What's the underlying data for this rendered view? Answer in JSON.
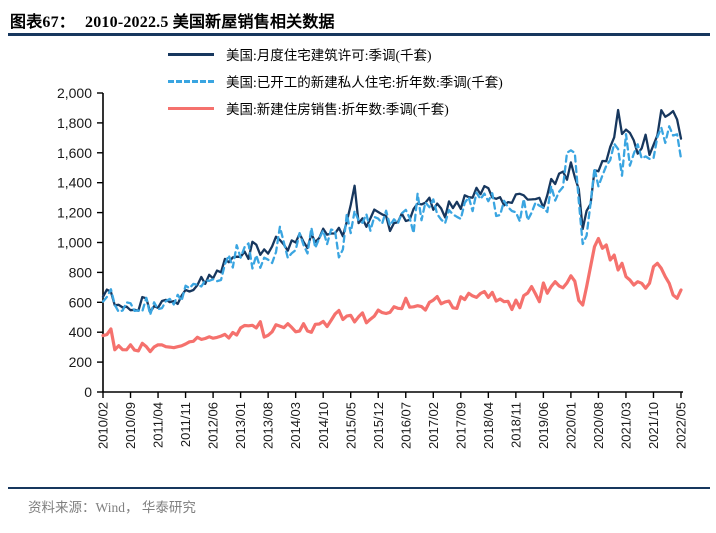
{
  "header": {
    "tag": "图表67：",
    "title": "2010-2022.5 美国新屋销售相关数据"
  },
  "footer": {
    "source": "资料来源：Wind， 华泰研究"
  },
  "colors": {
    "rule": "#17375E",
    "permits": "#17375E",
    "starts": "#3AA5E1",
    "sales": "#F5716D",
    "axis": "#000000",
    "tick_label": "#1a1a1a",
    "footer_text": "#7f7f7f"
  },
  "legend": [
    {
      "label": "美国:月度住宅建筑许可:季调(千套)",
      "style": "solid",
      "series": "permits"
    },
    {
      "label": "美国:已开工的新建私人住宅:折年数:季调(千套)",
      "style": "dashed",
      "series": "starts"
    },
    {
      "label": "美国:新建住房销售:折年数:季调(千套)",
      "style": "solid",
      "series": "sales"
    }
  ],
  "chart_data": {
    "type": "line",
    "title": "2010-2022.5 美国新屋销售相关数据",
    "x_start": "2010/02",
    "x_end": "2022/05",
    "x_unit": "month",
    "ylim": [
      0,
      2000
    ],
    "y_ticks": [
      0,
      200,
      400,
      600,
      800,
      1000,
      1200,
      1400,
      1600,
      1800,
      2000
    ],
    "y_tick_labels": [
      "0",
      "200",
      "400",
      "600",
      "800",
      "1,000",
      "1,200",
      "1,400",
      "1,600",
      "1,800",
      "2,000"
    ],
    "x_tick_every": 7,
    "x_tick_labels": [
      "2010/02",
      "2010/09",
      "2011/04",
      "2011/11",
      "2012/06",
      "2013/01",
      "2013/08",
      "2014/03",
      "2014/10",
      "2015/05",
      "2015/12",
      "2016/07",
      "2017/02",
      "2017/09",
      "2018/04",
      "2018/11",
      "2019/06",
      "2020/01",
      "2020/08",
      "2021/03",
      "2021/10",
      "2022/05"
    ],
    "grid": false,
    "legend_position": "top",
    "series": [
      {
        "name": "美国:月度住宅建筑许可:季调(千套)",
        "key": "permits",
        "dash": null,
        "values": [
          637,
          685,
          670,
          580,
          583,
          565,
          571,
          547,
          550,
          544,
          635,
          627,
          534,
          574,
          563,
          609,
          617,
          601,
          608,
          589,
          644,
          683,
          672,
          682,
          715,
          769,
          723,
          784,
          760,
          812,
          801,
          890,
          868,
          900,
          905,
          904,
          939,
          890,
          1005,
          985,
          918,
          954,
          926,
          974,
          1039,
          1017,
          986,
          945,
          1014,
          1000,
          1059,
          1005,
          963,
          1057,
          1003,
          1031,
          1092,
          1052,
          1060,
          1060,
          1098,
          1042,
          1140,
          1250,
          1380,
          1130,
          1161,
          1105,
          1161,
          1220,
          1204,
          1188,
          1177,
          1077,
          1130,
          1136,
          1193,
          1144,
          1152,
          1225,
          1260,
          1255,
          1266,
          1300,
          1219,
          1260,
          1228,
          1168,
          1275,
          1230,
          1272,
          1225,
          1316,
          1303,
          1300,
          1366,
          1323,
          1377,
          1364,
          1301,
          1292,
          1303,
          1249,
          1270,
          1265,
          1322,
          1326,
          1316,
          1287,
          1288,
          1290,
          1299,
          1232,
          1317,
          1425,
          1391,
          1461,
          1474,
          1420,
          1536,
          1438,
          1356,
          1090,
          1212,
          1258,
          1483,
          1476,
          1545,
          1544,
          1639,
          1704,
          1886,
          1726,
          1755,
          1733,
          1683,
          1594,
          1630,
          1721,
          1586,
          1653,
          1717,
          1885,
          1841,
          1857,
          1879,
          1823,
          1695
        ]
      },
      {
        "name": "美国:已开工的新建私人住宅:折年数:季调(千套)",
        "key": "starts",
        "dash": "6,4.5",
        "values": [
          605,
          636,
          687,
          583,
          536,
          546,
          599,
          594,
          543,
          545,
          539,
          630,
          517,
          600,
          554,
          561,
          608,
          623,
          585,
          650,
          610,
          711,
          694,
          723,
          718,
          706,
          747,
          744,
          754,
          741,
          749,
          854,
          915,
          833,
          982,
          898,
          969,
          994,
          826,
          915,
          831,
          898,
          885,
          863,
          936,
          1105,
          999,
          897,
          928,
          950,
          1063,
          984,
          927,
          1098,
          964,
          1028,
          1080,
          989,
          1087,
          1080,
          900,
          954,
          1190,
          1063,
          1211,
          1147,
          1132,
          1189,
          1079,
          1171,
          1160,
          1128,
          1213,
          1113,
          1155,
          1128,
          1195,
          1218,
          1164,
          1062,
          1328,
          1149,
          1268,
          1236,
          1288,
          1189,
          1154,
          1129,
          1217,
          1188,
          1172,
          1158,
          1265,
          1303,
          1210,
          1334,
          1290,
          1327,
          1276,
          1329,
          1177,
          1184,
          1279,
          1237,
          1211,
          1202,
          1142,
          1291,
          1149,
          1199,
          1267,
          1246,
          1233,
          1204,
          1377,
          1280,
          1340,
          1371,
          1601,
          1617,
          1599,
          1276,
          990,
          1046,
          1265,
          1497,
          1376,
          1448,
          1514,
          1551,
          1661,
          1625,
          1447,
          1725,
          1514,
          1594,
          1657,
          1562,
          1576,
          1559,
          1563,
          1706,
          1768,
          1666,
          1777,
          1716,
          1724,
          1562
        ]
      },
      {
        "name": "美国:新建住房销售:折年数:季调(千套)",
        "key": "sales",
        "dash": null,
        "values": [
          377,
          384,
          422,
          282,
          310,
          283,
          282,
          316,
          280,
          275,
          326,
          304,
          270,
          301,
          316,
          315,
          303,
          300,
          296,
          303,
          309,
          321,
          336,
          339,
          366,
          352,
          358,
          369,
          360,
          365,
          374,
          385,
          361,
          398,
          381,
          429,
          445,
          443,
          446,
          429,
          470,
          367,
          379,
          403,
          450,
          441,
          431,
          457,
          432,
          403,
          408,
          457,
          408,
          399,
          453,
          455,
          472,
          438,
          479,
          521,
          545,
          485,
          508,
          513,
          469,
          503,
          529,
          463,
          487,
          508,
          548,
          531,
          525,
          533,
          570,
          560,
          558,
          627,
          567,
          570,
          577,
          571,
          548,
          599,
          615,
          638,
          590,
          603,
          608,
          563,
          559,
          637,
          618,
          660,
          643,
          633,
          659,
          672,
          633,
          666,
          608,
          622,
          604,
          607,
          552,
          615,
          564,
          644,
          662,
          705,
          656,
          604,
          729,
          661,
          706,
          738,
          710,
          697,
          730,
          777,
          741,
          612,
          582,
          704,
          840,
          972,
          1027,
          961,
          983,
          883,
          916,
          816,
          861,
          771,
          749,
          716,
          738,
          727,
          694,
          727,
          838,
          861,
          827,
          771,
          727,
          649,
          627,
          682
        ]
      }
    ]
  }
}
